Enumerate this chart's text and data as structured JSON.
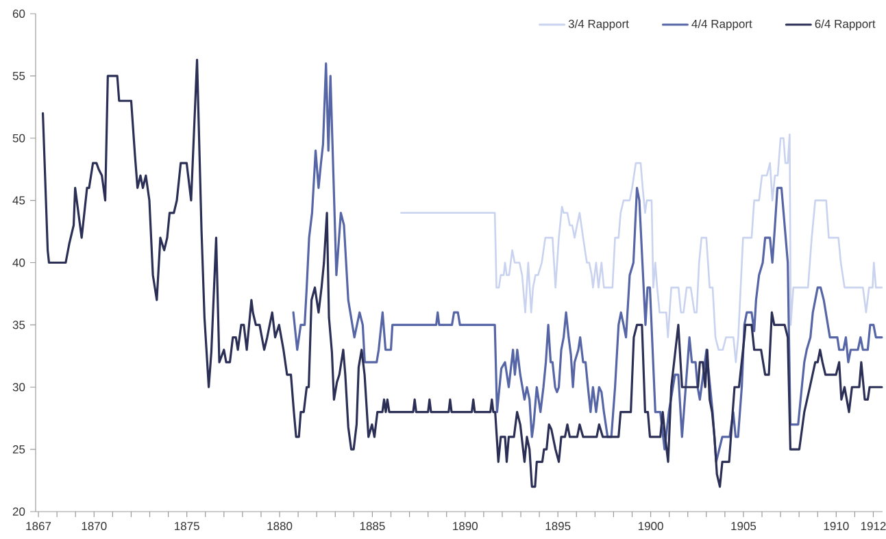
{
  "chart_data": {
    "type": "line",
    "legend": "top right",
    "xlim": [
      1866.85,
      1912.5
    ],
    "ylim": [
      20,
      60
    ],
    "yticks": [
      20,
      25,
      30,
      35,
      40,
      45,
      50,
      55,
      60
    ],
    "xticks": [
      1867,
      {
        "value": 1868,
        "label": null
      },
      {
        "value": 1869,
        "label": null
      },
      1870,
      {
        "value": 1871,
        "label": null
      },
      {
        "value": 1872,
        "label": null
      },
      {
        "value": 1873,
        "label": null
      },
      {
        "value": 1874,
        "label": null
      },
      1875,
      {
        "value": 1876,
        "label": null
      },
      {
        "value": 1877,
        "label": null
      },
      {
        "value": 1878,
        "label": null
      },
      {
        "value": 1879,
        "label": null
      },
      1880,
      {
        "value": 1881,
        "label": null
      },
      {
        "value": 1882,
        "label": null
      },
      {
        "value": 1883,
        "label": null
      },
      {
        "value": 1884,
        "label": null
      },
      1885,
      {
        "value": 1886,
        "label": null
      },
      {
        "value": 1887,
        "label": null
      },
      {
        "value": 1888,
        "label": null
      },
      {
        "value": 1889,
        "label": null
      },
      1890,
      {
        "value": 1891,
        "label": null
      },
      {
        "value": 1892,
        "label": null
      },
      {
        "value": 1893,
        "label": null
      },
      {
        "value": 1894,
        "label": null
      },
      1895,
      {
        "value": 1896,
        "label": null
      },
      {
        "value": 1897,
        "label": null
      },
      {
        "value": 1898,
        "label": null
      },
      {
        "value": 1899,
        "label": null
      },
      1900,
      {
        "value": 1901,
        "label": null
      },
      {
        "value": 1902,
        "label": null
      },
      {
        "value": 1903,
        "label": null
      },
      {
        "value": 1904,
        "label": null
      },
      1905,
      {
        "value": 1906,
        "label": null
      },
      {
        "value": 1907,
        "label": null
      },
      {
        "value": 1908,
        "label": null
      },
      {
        "value": 1909,
        "label": null
      },
      1910,
      {
        "value": 1911,
        "label": null
      },
      1912
    ],
    "series": [
      {
        "name": "3/4 Rapport",
        "color": "#c9d3f0",
        "x": [
          1886.55,
          1891.6,
          1891.69,
          1891.82,
          1891.92,
          1892.08,
          1892.15,
          1892.24,
          1892.37,
          1892.54,
          1892.67,
          1892.93,
          1893.07,
          1893.24,
          1893.4,
          1893.56,
          1893.66,
          1893.79,
          1893.93,
          1894.13,
          1894.32,
          1894.71,
          1894.87,
          1895.05,
          1895.22,
          1895.31,
          1895.51,
          1895.64,
          1895.77,
          1895.9,
          1896.03,
          1896.17,
          1896.36,
          1896.56,
          1896.69,
          1896.82,
          1896.89,
          1897.06,
          1897.19,
          1897.35,
          1897.48,
          1897.94,
          1898.08,
          1898.27,
          1898.38,
          1898.54,
          1898.87,
          1899.0,
          1899.2,
          1899.46,
          1899.57,
          1899.7,
          1899.79,
          1900.05,
          1900.14,
          1900.25,
          1900.35,
          1900.48,
          1900.84,
          1900.93,
          1901.11,
          1901.5,
          1901.63,
          1901.77,
          1901.94,
          1902.16,
          1902.36,
          1902.48,
          1902.61,
          1902.74,
          1903.0,
          1903.18,
          1903.34,
          1903.49,
          1903.66,
          1903.89,
          1904.06,
          1904.46,
          1904.59,
          1904.72,
          1904.98,
          1905.44,
          1905.58,
          1905.84,
          1906.0,
          1906.26,
          1906.43,
          1906.56,
          1906.7,
          1906.85,
          1907.0,
          1907.16,
          1907.26,
          1907.39,
          1907.49,
          1907.55,
          1907.69,
          1908.48,
          1908.68,
          1908.87,
          1909.46,
          1909.6,
          1910.12,
          1910.25,
          1910.45,
          1911.44,
          1911.61,
          1911.77,
          1911.96,
          1912.03,
          1912.14,
          1912.46
        ],
        "values": [
          44,
          44,
          38,
          38,
          39,
          39,
          40,
          39,
          39,
          41,
          40,
          40,
          39,
          36,
          40,
          36,
          38,
          39,
          39,
          40,
          42,
          42,
          38,
          42,
          44.5,
          44,
          44,
          43,
          43,
          42,
          43,
          44,
          42,
          40,
          40,
          39,
          38,
          40,
          38,
          40,
          38,
          38,
          42,
          42,
          44,
          45,
          45,
          46,
          48,
          48,
          46,
          44,
          45,
          45,
          38,
          40,
          38,
          36,
          36,
          34,
          38,
          38,
          36,
          36,
          38,
          38,
          36,
          36,
          40,
          42,
          42,
          38,
          38,
          34,
          33,
          33,
          34,
          34,
          32,
          34,
          42,
          42,
          45,
          45,
          47,
          47,
          48,
          45,
          47,
          47,
          50,
          50,
          48,
          48,
          50.3,
          35,
          38,
          38,
          42,
          45,
          45,
          42,
          42,
          40,
          38,
          38,
          36,
          38,
          38,
          40,
          38,
          38
        ]
      },
      {
        "name": "4/4 Rapport",
        "color": "#5565a5",
        "x": [
          1880.74,
          1880.95,
          1881.14,
          1881.35,
          1881.46,
          1881.59,
          1881.75,
          1881.94,
          1882.1,
          1882.23,
          1882.34,
          1882.5,
          1882.63,
          1882.74,
          1883.06,
          1883.3,
          1883.47,
          1883.7,
          1884.03,
          1884.31,
          1884.48,
          1884.59,
          1885.23,
          1885.34,
          1885.55,
          1885.71,
          1886.0,
          1886.08,
          1888.44,
          1888.52,
          1888.6,
          1889.29,
          1889.4,
          1889.61,
          1889.72,
          1891.6,
          1891.72,
          1891.95,
          1892.15,
          1892.35,
          1892.58,
          1892.68,
          1892.81,
          1892.97,
          1893.2,
          1893.33,
          1893.47,
          1893.6,
          1893.69,
          1893.86,
          1894.06,
          1894.22,
          1894.35,
          1894.48,
          1894.61,
          1894.71,
          1894.85,
          1894.95,
          1895.05,
          1895.18,
          1895.31,
          1895.44,
          1895.58,
          1895.7,
          1895.81,
          1895.9,
          1896.1,
          1896.2,
          1896.36,
          1896.49,
          1896.62,
          1896.76,
          1896.89,
          1897.06,
          1897.22,
          1897.35,
          1897.48,
          1897.68,
          1897.88,
          1898.08,
          1898.27,
          1898.4,
          1898.54,
          1898.67,
          1898.87,
          1899.07,
          1899.26,
          1899.39,
          1899.72,
          1899.83,
          1899.96,
          1900.25,
          1900.52,
          1900.75,
          1900.98,
          1901.31,
          1901.49,
          1901.69,
          1901.89,
          1902.09,
          1902.22,
          1902.42,
          1902.53,
          1902.65,
          1903.01,
          1903.14,
          1903.34,
          1903.53,
          1903.86,
          1904.26,
          1904.45,
          1904.58,
          1904.71,
          1904.91,
          1905.05,
          1905.18,
          1905.44,
          1905.58,
          1905.68,
          1905.84,
          1906.04,
          1906.17,
          1906.43,
          1906.56,
          1906.7,
          1906.83,
          1907.05,
          1907.22,
          1907.39,
          1907.53,
          1907.95,
          1908.08,
          1908.28,
          1908.41,
          1908.61,
          1908.74,
          1909.0,
          1909.16,
          1909.33,
          1909.66,
          1910.06,
          1910.16,
          1910.39,
          1910.52,
          1910.65,
          1910.78,
          1911.17,
          1911.31,
          1911.44,
          1911.7,
          1911.83,
          1912.01,
          1912.14,
          1912.46
        ],
        "values": [
          36,
          33,
          35,
          35,
          38,
          42,
          44,
          49,
          46,
          48,
          49.5,
          56,
          49,
          55,
          39,
          44,
          43,
          37,
          34,
          36,
          35,
          32,
          32,
          33,
          36,
          33,
          33,
          35,
          35,
          36,
          35,
          35,
          36,
          36,
          35,
          35,
          28,
          31.5,
          32,
          30,
          33,
          31,
          33,
          31,
          29,
          30,
          29,
          26,
          27,
          30,
          28,
          30,
          32,
          35,
          32,
          32,
          30,
          29.6,
          30,
          33,
          34,
          36,
          34,
          32.6,
          30,
          32,
          33,
          34,
          32,
          32,
          30,
          28,
          30,
          28,
          30,
          29.6,
          28,
          26,
          26,
          30,
          35,
          36,
          35,
          34,
          39,
          40,
          46,
          45,
          35,
          38,
          38,
          28,
          28,
          25,
          28,
          31,
          31,
          26,
          30,
          34,
          32,
          32,
          30,
          29,
          33,
          31,
          28,
          24,
          26,
          26,
          28,
          26,
          26,
          30,
          35,
          36,
          36,
          34.5,
          37,
          39,
          40,
          42,
          42,
          40,
          43,
          46,
          46,
          43,
          40,
          27,
          27,
          29,
          32,
          33,
          34,
          36,
          38,
          38,
          37,
          34,
          34,
          33,
          33,
          34,
          32,
          33,
          33,
          34,
          33,
          33,
          35,
          35,
          34,
          34
        ]
      },
      {
        "name": "6/4 Rapport",
        "color": "#2b2f55",
        "x": [
          1867.24,
          1867.5,
          1867.57,
          1868.47,
          1868.66,
          1868.9,
          1868.98,
          1869.33,
          1869.62,
          1869.73,
          1869.94,
          1870.13,
          1870.25,
          1870.42,
          1870.6,
          1870.74,
          1871.25,
          1871.35,
          1872.0,
          1872.2,
          1872.34,
          1872.5,
          1872.63,
          1872.79,
          1872.98,
          1873.17,
          1873.38,
          1873.57,
          1873.78,
          1873.94,
          1874.07,
          1874.3,
          1874.46,
          1874.67,
          1874.99,
          1875.23,
          1875.55,
          1875.79,
          1875.95,
          1876.18,
          1876.32,
          1876.58,
          1876.75,
          1877.0,
          1877.12,
          1877.32,
          1877.48,
          1877.64,
          1877.75,
          1877.93,
          1878.07,
          1878.23,
          1878.48,
          1878.56,
          1878.72,
          1878.92,
          1879.17,
          1879.33,
          1879.6,
          1879.76,
          1879.97,
          1880.21,
          1880.4,
          1880.61,
          1880.77,
          1880.89,
          1881.04,
          1881.14,
          1881.3,
          1881.46,
          1881.57,
          1881.72,
          1881.9,
          1882.1,
          1882.26,
          1882.39,
          1882.55,
          1882.66,
          1882.82,
          1882.93,
          1883.09,
          1883.22,
          1883.43,
          1883.54,
          1883.7,
          1883.86,
          1883.99,
          1884.15,
          1884.26,
          1884.42,
          1884.58,
          1884.79,
          1884.98,
          1885.11,
          1885.27,
          1885.54,
          1885.63,
          1885.72,
          1885.81,
          1885.91,
          1887.2,
          1887.28,
          1887.36,
          1888.0,
          1888.08,
          1888.16,
          1889.11,
          1889.19,
          1889.27,
          1890.36,
          1890.44,
          1890.52,
          1891.36,
          1891.44,
          1891.52,
          1891.62,
          1891.79,
          1891.92,
          1892.15,
          1892.24,
          1892.35,
          1892.63,
          1892.8,
          1892.97,
          1893.2,
          1893.33,
          1893.47,
          1893.6,
          1893.77,
          1893.86,
          1894.16,
          1894.25,
          1894.39,
          1894.52,
          1894.65,
          1894.87,
          1895.05,
          1895.18,
          1895.38,
          1895.51,
          1895.64,
          1896.04,
          1896.17,
          1896.36,
          1897.09,
          1897.22,
          1897.42,
          1898.27,
          1898.38,
          1898.93,
          1899.09,
          1899.26,
          1899.53,
          1899.7,
          1899.85,
          1899.96,
          1900.52,
          1900.65,
          1900.78,
          1900.94,
          1901.11,
          1901.49,
          1901.69,
          1902.55,
          1902.65,
          1902.81,
          1902.94,
          1903.05,
          1903.18,
          1903.31,
          1903.44,
          1903.57,
          1903.73,
          1903.86,
          1904.23,
          1904.42,
          1904.52,
          1904.76,
          1905.05,
          1905.11,
          1905.44,
          1905.58,
          1905.95,
          1906.17,
          1906.37,
          1906.53,
          1906.66,
          1907.22,
          1907.39,
          1907.53,
          1908.01,
          1908.28,
          1908.58,
          1908.87,
          1909.0,
          1909.13,
          1909.26,
          1909.42,
          1909.99,
          1910.16,
          1910.28,
          1910.45,
          1910.69,
          1910.85,
          1911.24,
          1911.35,
          1911.54,
          1911.7,
          1911.8,
          1912.46
        ],
        "values": [
          52,
          41,
          40,
          40,
          41.5,
          43,
          46,
          42,
          46,
          46,
          48,
          48,
          47.5,
          47,
          45,
          55,
          55,
          53,
          53,
          48.7,
          46,
          47,
          46,
          47,
          45,
          39,
          37,
          42,
          41,
          42,
          44,
          44,
          45,
          48,
          48,
          45,
          56.3,
          42.6,
          35.6,
          30,
          32.8,
          42,
          32,
          33,
          32,
          32,
          34,
          34,
          33,
          35,
          35,
          33,
          37,
          36,
          35,
          35,
          33,
          34,
          36,
          34,
          35,
          33,
          31,
          31,
          28,
          26,
          26,
          28,
          28,
          30,
          30,
          37,
          38,
          36,
          38,
          40,
          44,
          35.6,
          32.8,
          29,
          30.4,
          31,
          33,
          31,
          26.8,
          25,
          25,
          27,
          31.6,
          33,
          31,
          26,
          27,
          26,
          28,
          28,
          29,
          28,
          29,
          28,
          28,
          29,
          28,
          28,
          29,
          28,
          28,
          29,
          28,
          28,
          29,
          28,
          28,
          29,
          28,
          28,
          24,
          26,
          26,
          24,
          26,
          26,
          28,
          27,
          24,
          26,
          25,
          22,
          22,
          24,
          24,
          25,
          25,
          27,
          26.6,
          25,
          24,
          26,
          26,
          27,
          26,
          26,
          27,
          26,
          26,
          27,
          26,
          26,
          28,
          28,
          34,
          35,
          35,
          28,
          28,
          26,
          26,
          28,
          26,
          24,
          30,
          35,
          30,
          30,
          32,
          32,
          30,
          33,
          29,
          28,
          26,
          23,
          22,
          24,
          24,
          28,
          30,
          30,
          34,
          35,
          35,
          33,
          33,
          31,
          31,
          36,
          35,
          35,
          34,
          25,
          25,
          28,
          30,
          32,
          32,
          33,
          32,
          31,
          31,
          32,
          29,
          30,
          28,
          30,
          30,
          32,
          29,
          29,
          30,
          30
        ]
      }
    ]
  }
}
